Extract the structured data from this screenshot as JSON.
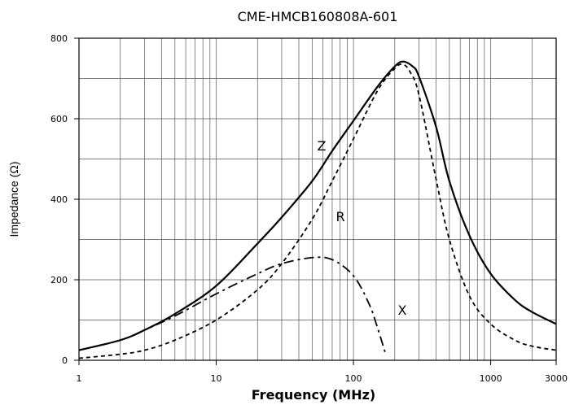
{
  "chart_data": {
    "type": "line",
    "title": "CME-HMCB160808A-601",
    "xlabel": "Frequency (MHz)",
    "ylabel": "Impedance (Ω)",
    "xscale": "log",
    "xlim": [
      1,
      3000
    ],
    "ylim": [
      0,
      800
    ],
    "x_ticks": [
      1,
      10,
      100,
      1000,
      3000
    ],
    "x_tick_labels": [
      "1",
      "10",
      "100",
      "1000",
      "3000"
    ],
    "y_ticks": [
      0,
      200,
      400,
      600,
      800
    ],
    "y_tick_labels": [
      "0",
      "200",
      "400",
      "600",
      "800"
    ],
    "grid": true,
    "series": [
      {
        "name": "Z",
        "line_style": "solid",
        "x": [
          1,
          2,
          3,
          5,
          10,
          20,
          30,
          50,
          70,
          100,
          150,
          200,
          230,
          270,
          300,
          400,
          500,
          700,
          1000,
          1500,
          2000,
          3000
        ],
        "values": [
          25,
          50,
          75,
          115,
          185,
          290,
          355,
          445,
          520,
          595,
          680,
          730,
          742,
          730,
          705,
          580,
          445,
          310,
          215,
          150,
          120,
          90
        ]
      },
      {
        "name": "R",
        "line_style": "dashed",
        "x": [
          1,
          2,
          3,
          5,
          10,
          20,
          30,
          50,
          70,
          100,
          150,
          200,
          230,
          260,
          300,
          400,
          500,
          700,
          1000,
          1500,
          2000,
          3000
        ],
        "values": [
          5,
          15,
          25,
          50,
          100,
          175,
          240,
          350,
          445,
          550,
          670,
          725,
          735,
          715,
          660,
          450,
          300,
          160,
          90,
          50,
          35,
          25
        ]
      },
      {
        "name": "X",
        "line_style": "dashdot",
        "x": [
          1,
          2,
          3,
          5,
          10,
          20,
          30,
          50,
          70,
          100,
          130,
          150,
          170
        ],
        "values": [
          25,
          50,
          75,
          110,
          165,
          215,
          240,
          255,
          250,
          210,
          140,
          80,
          20
        ]
      }
    ]
  }
}
